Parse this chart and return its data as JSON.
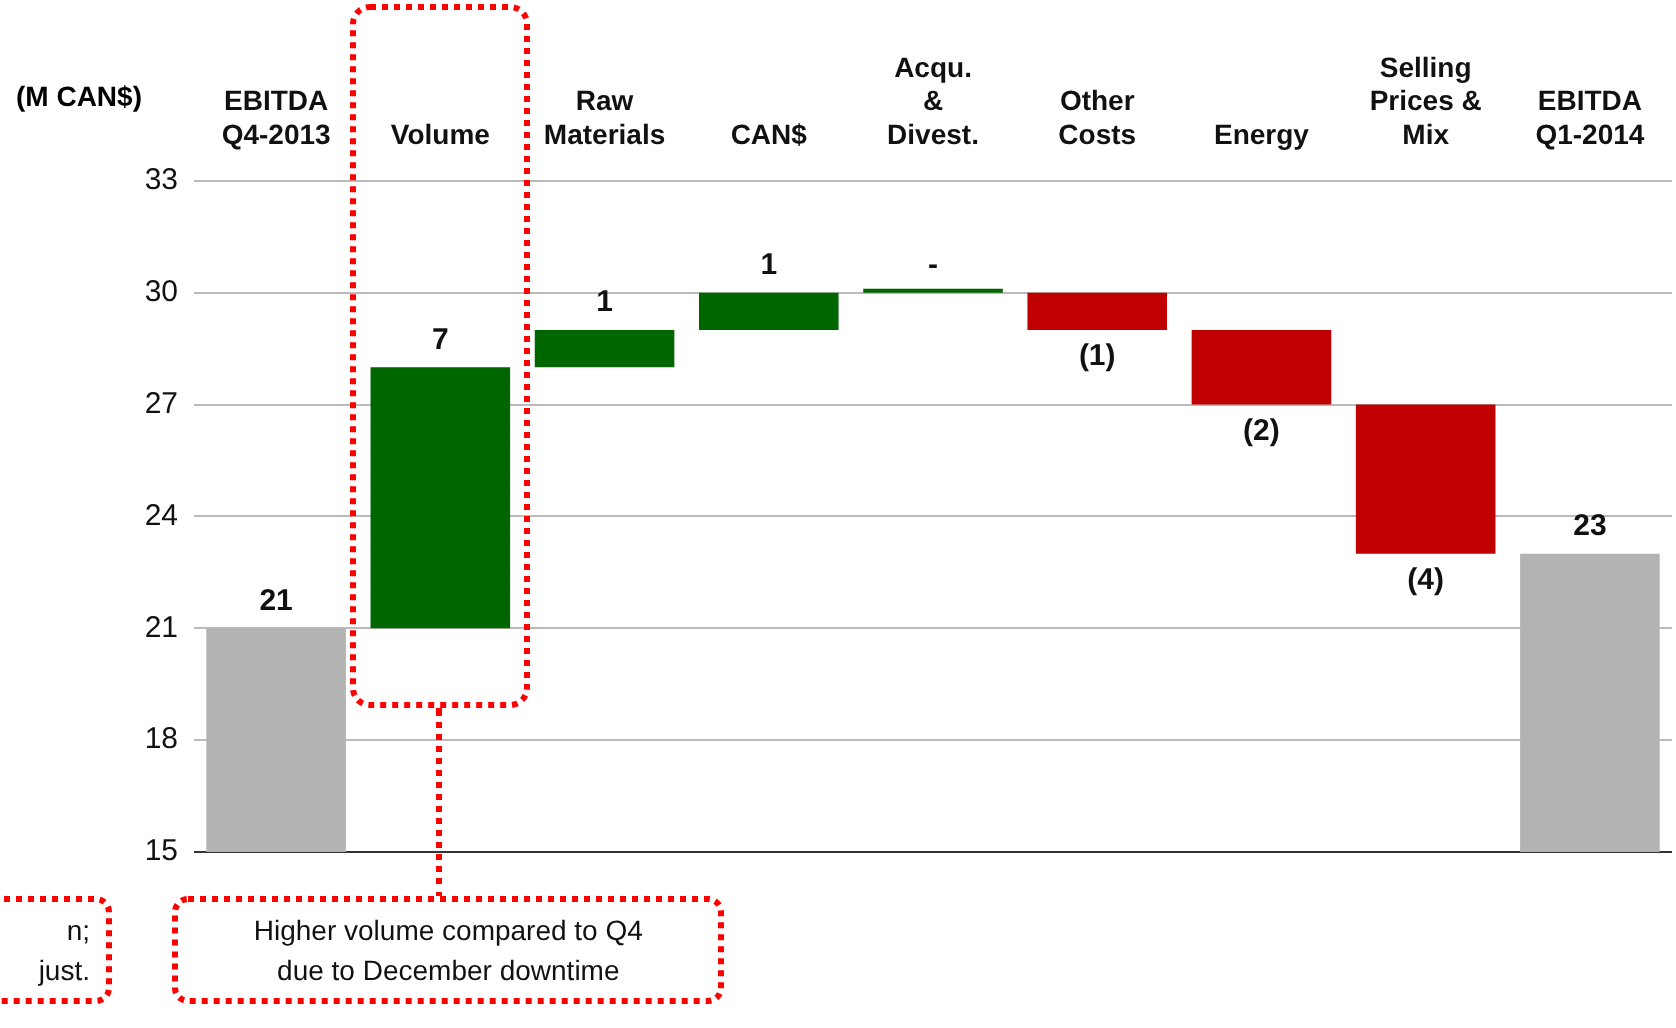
{
  "chart_data": {
    "type": "bar",
    "ylabel": "(M CAN$)",
    "categories": [
      "EBITDA\nQ4-2013",
      "Volume",
      "Raw\nMaterials",
      "CAN$",
      "Acqu.\n&\nDivest.",
      "Other\nCosts",
      "Energy",
      "Selling\nPrices &\nMix",
      "EBITDA\nQ1-2014"
    ],
    "values": [
      21,
      7,
      1,
      1,
      0,
      -1,
      -2,
      -4,
      23
    ],
    "base": [
      null,
      21,
      28,
      29,
      30,
      30,
      29,
      27,
      null
    ],
    "colors": [
      "#b3b3b3",
      "#006600",
      "#006600",
      "#006600",
      "#006600",
      "#c00000",
      "#c00000",
      "#c00000",
      "#b3b3b3"
    ],
    "value_labels": [
      "21",
      "7",
      "1",
      "1",
      "-",
      "(1)",
      "(2)",
      "(4)",
      "23"
    ],
    "ylim": [
      15,
      33
    ],
    "yticks": [
      15,
      18,
      21,
      24,
      27,
      30,
      33
    ],
    "grid": "y",
    "legend": false,
    "annotations": [
      {
        "text": "Higher volume compared to Q4\ndue to December downtime",
        "x": "Volume"
      },
      "n;\njust."
    ]
  }
}
